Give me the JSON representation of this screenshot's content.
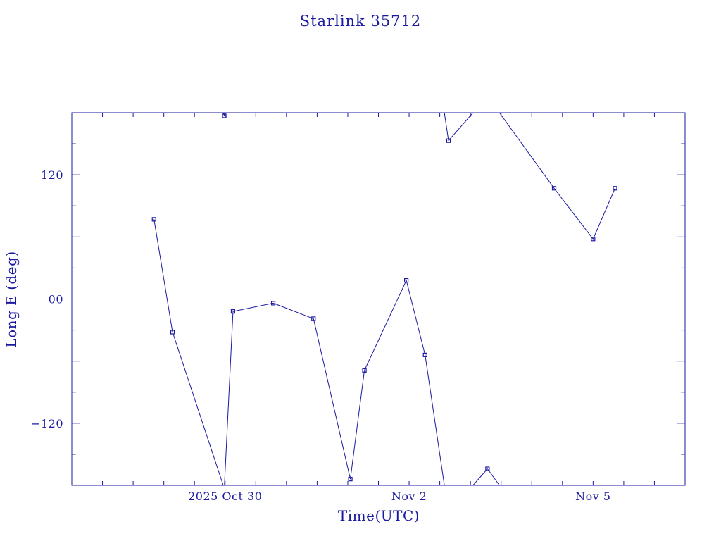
{
  "chart_data": {
    "type": "line",
    "title": "Starlink 35712",
    "xlabel": "Time(UTC)",
    "ylabel": "Long E (deg)",
    "xlim": [
      "2025-10-27T12:00Z",
      "2025-11-06T12:00Z"
    ],
    "ylim": [
      -180,
      180
    ],
    "y_ticks": [
      {
        "value": 120,
        "label": "120"
      },
      {
        "value": 0,
        "label": "00"
      },
      {
        "value": -120,
        "label": "−120"
      }
    ],
    "x_tick_labels": [
      {
        "date": "2025-10-30T00:00Z",
        "label": "2025 Oct 30"
      },
      {
        "date": "2025-11-02T00:00Z",
        "label": "Nov  2"
      },
      {
        "date": "2025-11-05T00:00Z",
        "label": "Nov  5"
      }
    ],
    "grid": false,
    "color": "#1a1aa0",
    "series": [
      {
        "points": [
          {
            "t": "2025-10-28T20:10Z",
            "lon": 77
          },
          {
            "t": "2025-10-29T03:25Z",
            "lon": -32
          },
          {
            "t": "2025-10-29T23:40Z",
            "lon": 177
          },
          {
            "t": "2025-10-30T03:05Z",
            "lon": -12
          },
          {
            "t": "2025-10-30T18:50Z",
            "lon": -4
          },
          {
            "t": "2025-10-31T10:35Z",
            "lon": -19
          },
          {
            "t": "2025-11-01T01:00Z",
            "lon": -174
          },
          {
            "t": "2025-11-01T06:30Z",
            "lon": -69
          },
          {
            "t": "2025-11-01T22:55Z",
            "lon": 18
          },
          {
            "t": "2025-11-02T06:15Z",
            "lon": -54
          },
          {
            "t": "2025-11-02T15:25Z",
            "lon": 153
          },
          {
            "t": "2025-11-03T06:40Z",
            "lon": -164
          },
          {
            "t": "2025-11-04T08:45Z",
            "lon": 107
          },
          {
            "t": "2025-11-05T00:00Z",
            "lon": 58
          },
          {
            "t": "2025-11-05T08:35Z",
            "lon": 107
          }
        ]
      }
    ]
  }
}
